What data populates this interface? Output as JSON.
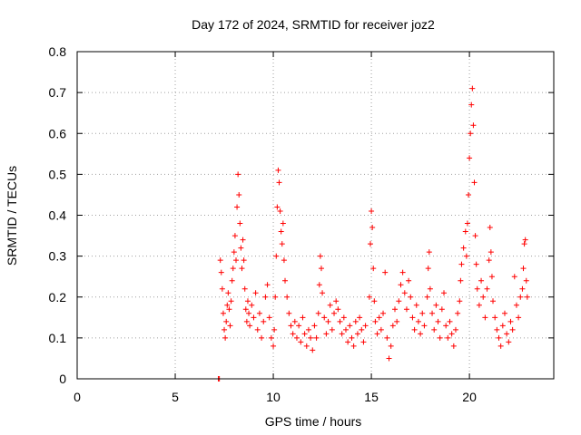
{
  "chart_data": {
    "type": "scatter",
    "title": "Day 172 of 2024, SRMTID for receiver joz2",
    "xlabel": "GPS time / hours",
    "ylabel": "SRMTID / TECUs",
    "xlim": [
      0,
      24.3
    ],
    "ylim": [
      0,
      0.8
    ],
    "grid": true,
    "xticks": [
      0,
      5,
      10,
      15,
      20
    ],
    "yticks": [
      0,
      0.1,
      0.2,
      0.3,
      0.4,
      0.5,
      0.6,
      0.7,
      0.8
    ],
    "xtick_labels": [
      "0",
      "5",
      "10",
      "15",
      "20"
    ],
    "ytick_labels": [
      "0",
      "0.1",
      "0.2",
      "0.3",
      "0.4",
      "0.5",
      "0.6",
      "0.7",
      "0.8"
    ],
    "marker": "+",
    "series_color": "#ff0000",
    "series": [
      {
        "name": "joz2",
        "points": [
          [
            7.2,
            0.0
          ],
          [
            7.25,
            0.0
          ],
          [
            7.3,
            0.29
          ],
          [
            7.35,
            0.26
          ],
          [
            7.4,
            0.22
          ],
          [
            7.45,
            0.16
          ],
          [
            7.5,
            0.12
          ],
          [
            7.55,
            0.1
          ],
          [
            7.6,
            0.14
          ],
          [
            7.65,
            0.18
          ],
          [
            7.7,
            0.21
          ],
          [
            7.75,
            0.17
          ],
          [
            7.8,
            0.13
          ],
          [
            7.85,
            0.19
          ],
          [
            7.9,
            0.24
          ],
          [
            7.95,
            0.27
          ],
          [
            8.0,
            0.31
          ],
          [
            8.05,
            0.35
          ],
          [
            8.1,
            0.29
          ],
          [
            8.15,
            0.42
          ],
          [
            8.2,
            0.5
          ],
          [
            8.25,
            0.45
          ],
          [
            8.3,
            0.38
          ],
          [
            8.35,
            0.32
          ],
          [
            8.4,
            0.27
          ],
          [
            8.45,
            0.34
          ],
          [
            8.5,
            0.29
          ],
          [
            8.55,
            0.22
          ],
          [
            8.6,
            0.17
          ],
          [
            8.65,
            0.14
          ],
          [
            8.7,
            0.19
          ],
          [
            8.75,
            0.16
          ],
          [
            8.8,
            0.13
          ],
          [
            8.9,
            0.18
          ],
          [
            9.0,
            0.15
          ],
          [
            9.1,
            0.21
          ],
          [
            9.2,
            0.12
          ],
          [
            9.3,
            0.16
          ],
          [
            9.4,
            0.1
          ],
          [
            9.5,
            0.14
          ],
          [
            9.6,
            0.2
          ],
          [
            9.7,
            0.23
          ],
          [
            9.8,
            0.15
          ],
          [
            9.9,
            0.1
          ],
          [
            10.0,
            0.08
          ],
          [
            10.05,
            0.12
          ],
          [
            10.1,
            0.2
          ],
          [
            10.15,
            0.3
          ],
          [
            10.2,
            0.42
          ],
          [
            10.25,
            0.51
          ],
          [
            10.3,
            0.48
          ],
          [
            10.35,
            0.41
          ],
          [
            10.4,
            0.36
          ],
          [
            10.45,
            0.33
          ],
          [
            10.5,
            0.38
          ],
          [
            10.55,
            0.29
          ],
          [
            10.6,
            0.24
          ],
          [
            10.7,
            0.2
          ],
          [
            10.8,
            0.16
          ],
          [
            10.9,
            0.13
          ],
          [
            11.0,
            0.11
          ],
          [
            11.1,
            0.14
          ],
          [
            11.2,
            0.1
          ],
          [
            11.3,
            0.13
          ],
          [
            11.4,
            0.09
          ],
          [
            11.5,
            0.15
          ],
          [
            11.6,
            0.11
          ],
          [
            11.7,
            0.08
          ],
          [
            11.8,
            0.12
          ],
          [
            11.9,
            0.1
          ],
          [
            12.0,
            0.07
          ],
          [
            12.1,
            0.13
          ],
          [
            12.2,
            0.1
          ],
          [
            12.3,
            0.16
          ],
          [
            12.35,
            0.23
          ],
          [
            12.4,
            0.3
          ],
          [
            12.45,
            0.27
          ],
          [
            12.5,
            0.21
          ],
          [
            12.6,
            0.15
          ],
          [
            12.7,
            0.11
          ],
          [
            12.8,
            0.14
          ],
          [
            12.9,
            0.18
          ],
          [
            13.0,
            0.12
          ],
          [
            13.1,
            0.16
          ],
          [
            13.2,
            0.19
          ],
          [
            13.3,
            0.17
          ],
          [
            13.4,
            0.14
          ],
          [
            13.5,
            0.11
          ],
          [
            13.6,
            0.15
          ],
          [
            13.7,
            0.12
          ],
          [
            13.8,
            0.09
          ],
          [
            13.9,
            0.13
          ],
          [
            14.0,
            0.1
          ],
          [
            14.1,
            0.08
          ],
          [
            14.2,
            0.14
          ],
          [
            14.3,
            0.11
          ],
          [
            14.4,
            0.15
          ],
          [
            14.5,
            0.12
          ],
          [
            14.6,
            0.09
          ],
          [
            14.7,
            0.13
          ],
          [
            14.9,
            0.2
          ],
          [
            14.95,
            0.33
          ],
          [
            15.0,
            0.41
          ],
          [
            15.05,
            0.37
          ],
          [
            15.1,
            0.27
          ],
          [
            15.15,
            0.19
          ],
          [
            15.2,
            0.14
          ],
          [
            15.3,
            0.11
          ],
          [
            15.4,
            0.15
          ],
          [
            15.5,
            0.12
          ],
          [
            15.6,
            0.16
          ],
          [
            15.7,
            0.26
          ],
          [
            15.8,
            0.1
          ],
          [
            15.9,
            0.05
          ],
          [
            16.0,
            0.08
          ],
          [
            16.1,
            0.13
          ],
          [
            16.2,
            0.17
          ],
          [
            16.3,
            0.14
          ],
          [
            16.4,
            0.19
          ],
          [
            16.5,
            0.23
          ],
          [
            16.6,
            0.26
          ],
          [
            16.7,
            0.21
          ],
          [
            16.8,
            0.17
          ],
          [
            16.9,
            0.24
          ],
          [
            17.0,
            0.2
          ],
          [
            17.1,
            0.15
          ],
          [
            17.2,
            0.12
          ],
          [
            17.3,
            0.18
          ],
          [
            17.4,
            0.14
          ],
          [
            17.5,
            0.11
          ],
          [
            17.6,
            0.16
          ],
          [
            17.7,
            0.13
          ],
          [
            17.85,
            0.2
          ],
          [
            17.9,
            0.27
          ],
          [
            17.95,
            0.31
          ],
          [
            18.0,
            0.22
          ],
          [
            18.1,
            0.16
          ],
          [
            18.2,
            0.12
          ],
          [
            18.3,
            0.18
          ],
          [
            18.4,
            0.14
          ],
          [
            18.5,
            0.1
          ],
          [
            18.6,
            0.17
          ],
          [
            18.7,
            0.21
          ],
          [
            18.8,
            0.13
          ],
          [
            18.9,
            0.1
          ],
          [
            19.0,
            0.14
          ],
          [
            19.1,
            0.11
          ],
          [
            19.2,
            0.08
          ],
          [
            19.3,
            0.12
          ],
          [
            19.4,
            0.16
          ],
          [
            19.5,
            0.19
          ],
          [
            19.55,
            0.24
          ],
          [
            19.6,
            0.28
          ],
          [
            19.7,
            0.32
          ],
          [
            19.8,
            0.36
          ],
          [
            19.85,
            0.3
          ],
          [
            19.9,
            0.38
          ],
          [
            19.95,
            0.45
          ],
          [
            20.0,
            0.54
          ],
          [
            20.05,
            0.6
          ],
          [
            20.1,
            0.67
          ],
          [
            20.15,
            0.71
          ],
          [
            20.2,
            0.62
          ],
          [
            20.25,
            0.48
          ],
          [
            20.3,
            0.35
          ],
          [
            20.35,
            0.28
          ],
          [
            20.4,
            0.22
          ],
          [
            20.5,
            0.18
          ],
          [
            20.6,
            0.24
          ],
          [
            20.7,
            0.2
          ],
          [
            20.8,
            0.15
          ],
          [
            20.9,
            0.22
          ],
          [
            21.0,
            0.29
          ],
          [
            21.05,
            0.37
          ],
          [
            21.1,
            0.31
          ],
          [
            21.15,
            0.25
          ],
          [
            21.2,
            0.19
          ],
          [
            21.3,
            0.15
          ],
          [
            21.4,
            0.12
          ],
          [
            21.5,
            0.1
          ],
          [
            21.6,
            0.08
          ],
          [
            21.7,
            0.13
          ],
          [
            21.8,
            0.16
          ],
          [
            21.9,
            0.11
          ],
          [
            22.0,
            0.09
          ],
          [
            22.1,
            0.14
          ],
          [
            22.2,
            0.12
          ],
          [
            22.3,
            0.25
          ],
          [
            22.4,
            0.18
          ],
          [
            22.5,
            0.15
          ],
          [
            22.6,
            0.2
          ],
          [
            22.7,
            0.22
          ],
          [
            22.75,
            0.27
          ],
          [
            22.8,
            0.33
          ],
          [
            22.85,
            0.34
          ],
          [
            22.9,
            0.24
          ],
          [
            22.95,
            0.2
          ]
        ]
      }
    ]
  }
}
